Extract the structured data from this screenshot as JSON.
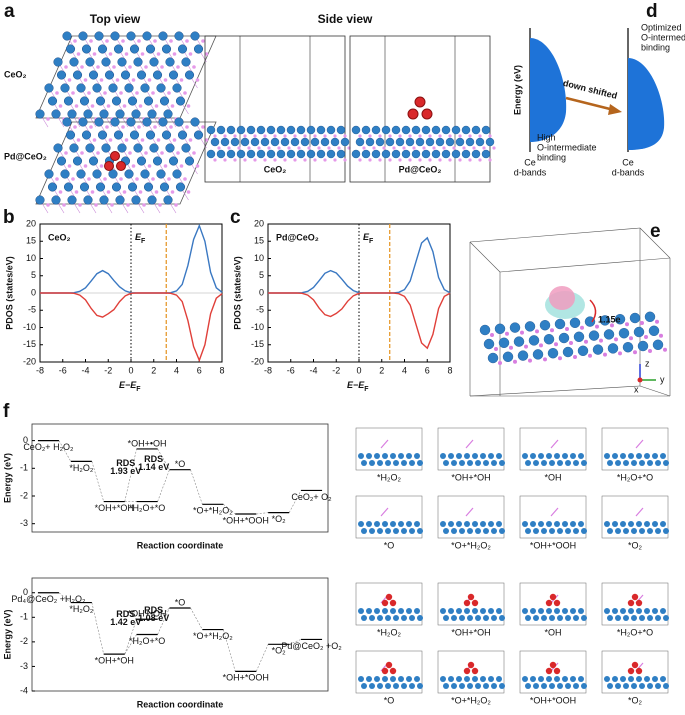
{
  "panel_labels": [
    "a",
    "b",
    "c",
    "d",
    "e",
    "f"
  ],
  "panel_a": {
    "top_view": "Top view",
    "side_view": "Side view",
    "row_labels": [
      "CeO₂",
      "Pd@CeO₂"
    ],
    "side_captions": [
      "CeO₂",
      "Pd@CeO₂"
    ]
  },
  "panel_d": {
    "y_label": "Energy (eV)",
    "arrow_label": "down shifted",
    "left_note": [
      "High",
      "O-intermediate",
      "binding"
    ],
    "right_note": [
      "Optimized",
      "O-intermediate",
      "binding"
    ],
    "left_base": [
      "Ce",
      "d-bands"
    ],
    "right_base": [
      "Ce",
      "d-bands"
    ]
  },
  "panel_e": {
    "charge": "1.15e",
    "axes": [
      "z",
      "x",
      "y"
    ]
  },
  "chart_data": [
    {
      "type": "line",
      "label": "CeO₂",
      "ylabel": "PDOS (states/eV)",
      "xlabel": {
        "text": "E−E",
        "sub": "F"
      },
      "fermi_label": {
        "text": "E",
        "sub": "F"
      },
      "x": [
        -8,
        -7.5,
        -7,
        -6.5,
        -6,
        -5.5,
        -5,
        -4.5,
        -4,
        -3.5,
        -3,
        -2.5,
        -2,
        -1.5,
        -1,
        -0.5,
        0,
        0.5,
        1,
        1.5,
        2,
        2.5,
        3,
        3.5,
        4,
        4.5,
        5,
        5.5,
        6,
        6.5,
        7,
        7.5,
        8
      ],
      "series": [
        {
          "color": "#3a78c2",
          "values": [
            0,
            0,
            0,
            0,
            0,
            0,
            0.1,
            0.5,
            1.5,
            3.5,
            5.6,
            6.5,
            5.6,
            3.6,
            1.8,
            0.6,
            0.1,
            0,
            0,
            0,
            0,
            0,
            0,
            0.1,
            0.6,
            2.5,
            8,
            15.5,
            19.5,
            15,
            6,
            1.5,
            0.2
          ]
        },
        {
          "color": "#e0403a",
          "values": [
            0,
            0,
            0,
            0,
            0,
            0,
            -0.1,
            -0.6,
            -2,
            -4.5,
            -6.5,
            -7,
            -6,
            -4.8,
            -2.5,
            -0.8,
            -0.1,
            0,
            0,
            0,
            0,
            0,
            0,
            -0.1,
            -0.6,
            -2.5,
            -8,
            -15.5,
            -19.5,
            -15,
            -6,
            -1.5,
            -0.2
          ]
        }
      ],
      "markers": [
        {
          "x": 0,
          "color": "#000000",
          "style": "dotted"
        },
        {
          "x": 3.1,
          "color": "#e69a2e",
          "style": "dashed"
        }
      ],
      "xlim": [
        -8,
        8
      ],
      "xticks": [
        -8,
        -6,
        -4,
        -2,
        0,
        2,
        4,
        6,
        8
      ],
      "ylim": [
        -20,
        20
      ],
      "yticks": [
        -20,
        -15,
        -10,
        -5,
        0,
        5,
        10,
        15,
        20
      ]
    },
    {
      "type": "line",
      "label": "Pd@CeO₂",
      "ylabel": "PDOS (states/eV)",
      "xlabel": {
        "text": "E−E",
        "sub": "F"
      },
      "fermi_label": {
        "text": "E",
        "sub": "F"
      },
      "x": [
        -8,
        -7.5,
        -7,
        -6.5,
        -6,
        -5.5,
        -5,
        -4.5,
        -4,
        -3.5,
        -3,
        -2.5,
        -2,
        -1.5,
        -1,
        -0.5,
        0,
        0.5,
        1,
        1.5,
        2,
        2.5,
        3,
        3.5,
        4,
        4.5,
        5,
        5.5,
        6,
        6.5,
        7,
        7.5,
        8
      ],
      "series": [
        {
          "color": "#3a78c2",
          "values": [
            0,
            0,
            0,
            0,
            0,
            0,
            0.1,
            0.5,
            1.6,
            3.6,
            5.7,
            6.5,
            5.8,
            4,
            2,
            0.7,
            0.1,
            0,
            0,
            0,
            0,
            0,
            0,
            0.2,
            1,
            3.5,
            9,
            14.5,
            16,
            12,
            4.5,
            1,
            0.1
          ]
        },
        {
          "color": "#e0403a",
          "values": [
            0,
            0,
            0,
            0,
            0,
            0,
            -0.1,
            -0.6,
            -2,
            -4.4,
            -6.3,
            -6.8,
            -5.9,
            -4.6,
            -2.4,
            -0.8,
            -0.1,
            0,
            0,
            0,
            0,
            0,
            0,
            -0.2,
            -1,
            -3.5,
            -9,
            -14.5,
            -16,
            -12,
            -4.5,
            -1,
            -0.1
          ]
        }
      ],
      "markers": [
        {
          "x": 0,
          "color": "#000000",
          "style": "dotted"
        },
        {
          "x": 2.7,
          "color": "#e69a2e",
          "style": "dashed"
        }
      ],
      "xlim": [
        -8,
        8
      ],
      "xticks": [
        -8,
        -6,
        -4,
        -2,
        0,
        2,
        4,
        6,
        8
      ],
      "ylim": [
        -20,
        20
      ],
      "yticks": [
        -20,
        -15,
        -10,
        -5,
        0,
        5,
        10,
        15,
        20
      ]
    },
    {
      "type": "step",
      "ylabel": "Energy (eV)",
      "xlabel": "Reaction coordinate",
      "labels": [
        "CeO₂+ H₂O₂",
        "*H₂O₂",
        "*OH+*OH",
        "*OH+•OH",
        "*H₂O+*O",
        "*O",
        "*O+*H₂O₂",
        "*OH+*OOH",
        "*O₂",
        "CeO₂+ O₂"
      ],
      "x": [
        0,
        1,
        2,
        3,
        3,
        4,
        5,
        6,
        7,
        8
      ],
      "values": [
        0,
        -0.75,
        -2.2,
        -0.3,
        -2.2,
        -1.05,
        -2.3,
        -2.65,
        -2.6,
        -1.8
      ],
      "annotations": [
        {
          "lines": [
            "RDS",
            "1.93 eV"
          ],
          "color": "#1fa0d8"
        },
        {
          "lines": [
            "RDS",
            "1.14 eV"
          ],
          "color": "#1fa0d8"
        }
      ],
      "ylim": [
        -3.3,
        0.6
      ],
      "yticks": [
        0,
        -1,
        -2,
        -3
      ]
    },
    {
      "type": "step",
      "ylabel": "Energy (eV)",
      "xlabel": "Reaction coordinate",
      "labels": [
        "Pd₄@CeO₂ +H₂O₂",
        "*H₂O₂",
        "*OH+*OH",
        "*OH+•OH",
        "*H₂O+*O",
        "*O",
        "*O+*H₂O₂",
        "*OH+*OOH",
        "*O₂",
        "Pd@CeO₂ +O₂"
      ],
      "x": [
        0,
        1,
        2,
        3,
        3,
        4,
        5,
        6,
        7,
        8
      ],
      "values": [
        0,
        -0.4,
        -2.5,
        -1.08,
        -1.7,
        -0.62,
        -1.5,
        -3.2,
        -2.1,
        -1.9
      ],
      "annotations": [
        {
          "lines": [
            "RDS",
            "1.42 eV"
          ],
          "color": "#d8202a"
        },
        {
          "lines": [
            "RDS",
            "1.08 eV"
          ],
          "color": "#d8202a"
        }
      ],
      "ylim": [
        -4,
        0.6
      ],
      "yticks": [
        0,
        -1,
        -2,
        -3,
        -4
      ]
    }
  ],
  "snapshots": [
    [
      [
        "*H₂O₂",
        "*OH+*OH",
        "*OH",
        "*H₂O+*O"
      ],
      [
        "*O",
        "*O+*H₂O₂",
        "*OH+*OOH",
        "*O₂"
      ]
    ],
    [
      [
        "*H₂O₂",
        "*OH+*OH",
        "*OH",
        "*H₂O+*O"
      ],
      [
        "*O",
        "*O+*H₂O₂",
        "*OH+*OOH",
        "*O₂"
      ]
    ]
  ]
}
